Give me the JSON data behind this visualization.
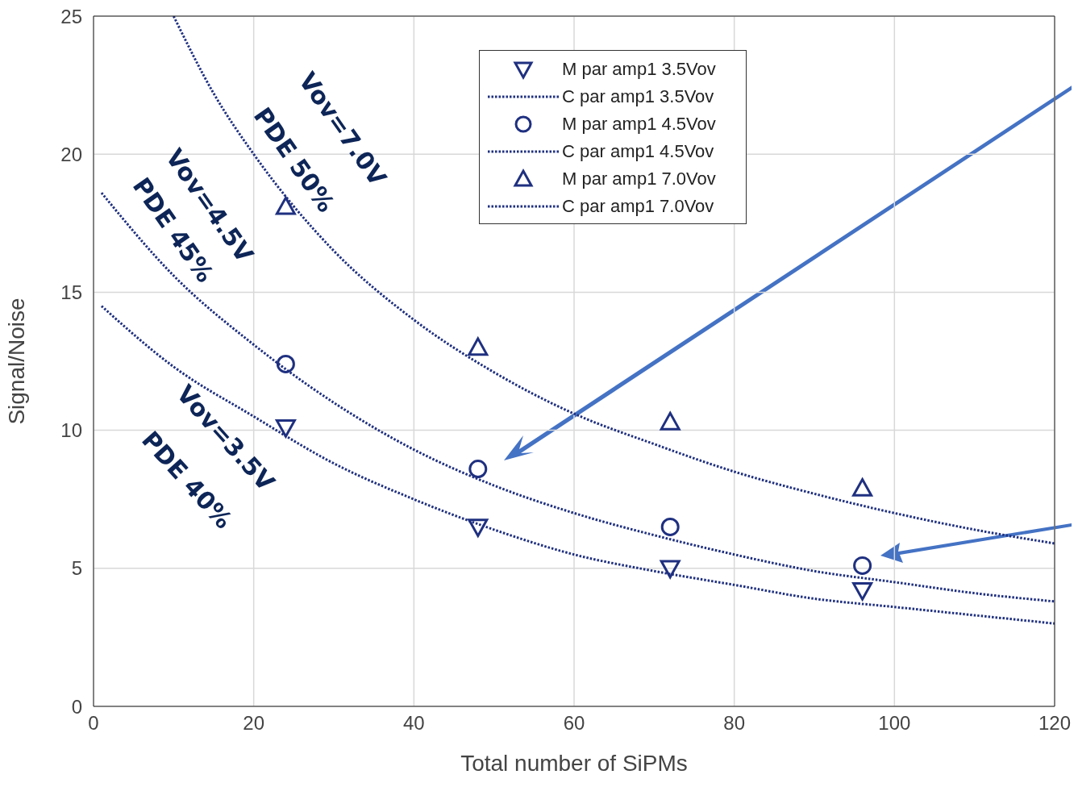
{
  "chart_data": {
    "type": "scatter",
    "xlabel": "Total number of SiPMs",
    "ylabel": "Signal/Noise",
    "xlim": [
      0,
      120
    ],
    "xticks": [
      0,
      20,
      40,
      60,
      80,
      100,
      120
    ],
    "ylim": [
      0,
      25
    ],
    "yticks": [
      0,
      5,
      10,
      15,
      20,
      25
    ],
    "grid": true,
    "legend": "top right",
    "series": [
      {
        "name": "M par amp1 3.5Vov",
        "marker": "triangle-down",
        "color": "#1f3080",
        "x": [
          24,
          48,
          72,
          96
        ],
        "values": [
          10.1,
          6.5,
          5.0,
          4.2
        ]
      },
      {
        "name": "C par amp1 3.5Vov",
        "type": "line",
        "marker": "none",
        "line_style": "dotted",
        "color": "#1f3080",
        "x": [
          1,
          10,
          20,
          30,
          40,
          50,
          60,
          70,
          80,
          90,
          100,
          110,
          120
        ],
        "values": [
          14.5,
          12.3,
          10.5,
          8.8,
          7.5,
          6.4,
          5.5,
          4.9,
          4.4,
          3.9,
          3.6,
          3.3,
          3.0
        ]
      },
      {
        "name": "M par amp1 4.5Vov",
        "marker": "circle",
        "color": "#1f3080",
        "x": [
          24,
          48,
          72,
          96
        ],
        "values": [
          12.4,
          8.6,
          6.5,
          5.1
        ]
      },
      {
        "name": "C par amp1 4.5Vov",
        "type": "line",
        "marker": "none",
        "line_style": "dotted",
        "color": "#1f3080",
        "x": [
          1,
          10,
          20,
          30,
          40,
          50,
          60,
          70,
          80,
          90,
          100,
          110,
          120
        ],
        "values": [
          18.6,
          15.6,
          13.1,
          11.0,
          9.3,
          8.0,
          7.0,
          6.2,
          5.5,
          4.9,
          4.5,
          4.1,
          3.8
        ]
      },
      {
        "name": "M par amp1 7.0Vov",
        "marker": "triangle",
        "color": "#1f3080",
        "x": [
          24,
          48,
          72,
          96
        ],
        "values": [
          18.1,
          13.0,
          10.3,
          7.9
        ]
      },
      {
        "name": "C par amp1 7.0Vov",
        "type": "line",
        "marker": "none",
        "line_style": "dotted",
        "color": "#1f3080",
        "x": [
          10,
          15,
          20,
          30,
          40,
          50,
          60,
          70,
          80,
          90,
          100,
          110,
          120
        ],
        "values": [
          25,
          22.2,
          20.0,
          16.5,
          14.0,
          12.1,
          10.6,
          9.5,
          8.5,
          7.7,
          7.0,
          6.4,
          5.9
        ]
      }
    ],
    "annotations": [
      "Vov=7.0V",
      "PDE 50%",
      "Vov=4.5V",
      "PDE 45%",
      "Vov=3.5V",
      "PDE 40%"
    ]
  }
}
